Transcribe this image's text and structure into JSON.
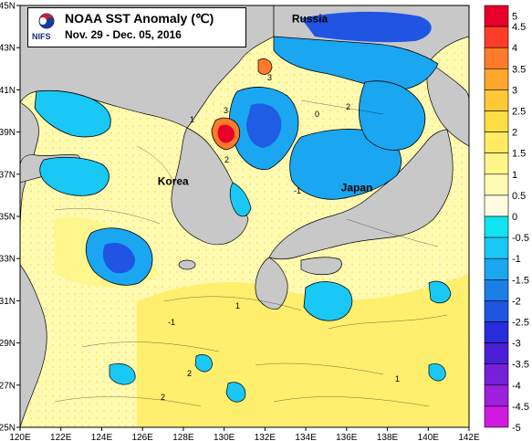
{
  "title": {
    "line1": "NOAA SST Anomaly (℃)",
    "line2": "Nov. 29 - Dec. 05, 2016",
    "logo_text": "NIFS"
  },
  "axes": {
    "lon_labels": [
      "120E",
      "122E",
      "124E",
      "126E",
      "128E",
      "130E",
      "132E",
      "134E",
      "136E",
      "138E",
      "140E",
      "142E"
    ],
    "lat_labels": [
      "45N",
      "43N",
      "41N",
      "39N",
      "37N",
      "35N",
      "33N",
      "31N",
      "29N",
      "27N",
      "25N"
    ],
    "lon_range": [
      120,
      142
    ],
    "lat_range": [
      25,
      45
    ]
  },
  "places": [
    {
      "name": "Russia",
      "lon": 134.2,
      "lat": 44.2
    },
    {
      "name": "Korea",
      "lon": 127.5,
      "lat": 36.5
    },
    {
      "name": "Japan",
      "lon": 136.5,
      "lat": 36.2
    }
  ],
  "colorbar": {
    "levels": [
      "5",
      "4.5",
      "4",
      "3.5",
      "3",
      "2.5",
      "2",
      "1.5",
      "1",
      "0.5",
      "0",
      "-0.5",
      "-1",
      "-1.5",
      "-2",
      "-2.5",
      "-3",
      "-3.5",
      "-4",
      "-4.5",
      "-5"
    ],
    "colors": [
      "#e8002a",
      "#ff3d2a",
      "#ff7a2a",
      "#ffa72d",
      "#ffc837",
      "#ffdd44",
      "#ffec63",
      "#fff68a",
      "#fffab4",
      "#fffde0",
      "#10e4f0",
      "#19c8f5",
      "#1aa6f0",
      "#1b7fe8",
      "#1f55e2",
      "#2a2ddc",
      "#4a1fd6",
      "#7421d8",
      "#9c20dc",
      "#cf1bdf"
    ]
  },
  "colors": {
    "land": "#c8c8c8",
    "coast": "#000000",
    "warm_weak": "#fffab4",
    "warm_mid": "#ffec63",
    "neutral": "#fffde0",
    "cool_weak": "#19c8f5",
    "cool_mid": "#1aa6f0",
    "cool_strong": "#1f55e2",
    "hot": "#e8002a"
  }
}
